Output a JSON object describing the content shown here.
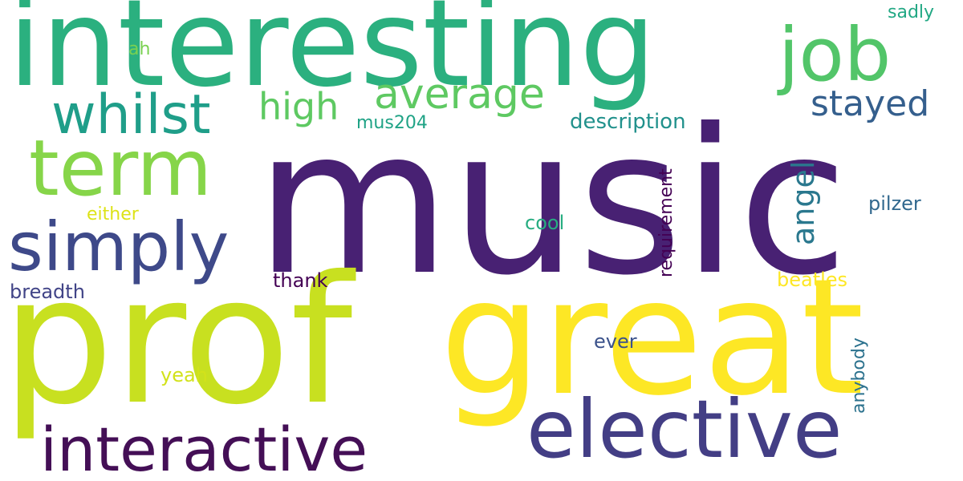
{
  "words": [
    {
      "text": "music",
      "color": "#482173"
    },
    {
      "text": "interesting",
      "color": "#2bb07f"
    },
    {
      "text": "prof",
      "color": "#c8e020"
    },
    {
      "text": "great",
      "color": "#fde725"
    },
    {
      "text": "elective",
      "color": "#433e85"
    },
    {
      "text": "interactive",
      "color": "#440f56"
    },
    {
      "text": "job",
      "color": "#52c569"
    },
    {
      "text": "term",
      "color": "#86d549"
    },
    {
      "text": "simply",
      "color": "#3e4989"
    },
    {
      "text": "whilst",
      "color": "#1f9e89"
    },
    {
      "text": "average",
      "color": "#5ec962"
    },
    {
      "text": "high",
      "color": "#5ec962"
    },
    {
      "text": "stayed",
      "color": "#355f8d"
    },
    {
      "text": "angel",
      "color": "#2a788e"
    },
    {
      "text": "description",
      "color": "#21918c"
    },
    {
      "text": "mus204",
      "color": "#20a386"
    },
    {
      "text": "requirement",
      "color": "#440154"
    },
    {
      "text": "sadly",
      "color": "#22a884"
    },
    {
      "text": "ah",
      "color": "#7ad151"
    },
    {
      "text": "pilzer",
      "color": "#31688e"
    },
    {
      "text": "cool",
      "color": "#27ad81"
    },
    {
      "text": "either",
      "color": "#dde318"
    },
    {
      "text": "breadth",
      "color": "#414487"
    },
    {
      "text": "thank",
      "color": "#440154"
    },
    {
      "text": "beatles",
      "color": "#fde725"
    },
    {
      "text": "ever",
      "color": "#3b528b"
    },
    {
      "text": "anybody",
      "color": "#2c728e"
    },
    {
      "text": "yeah",
      "color": "#d2e21b"
    }
  ]
}
